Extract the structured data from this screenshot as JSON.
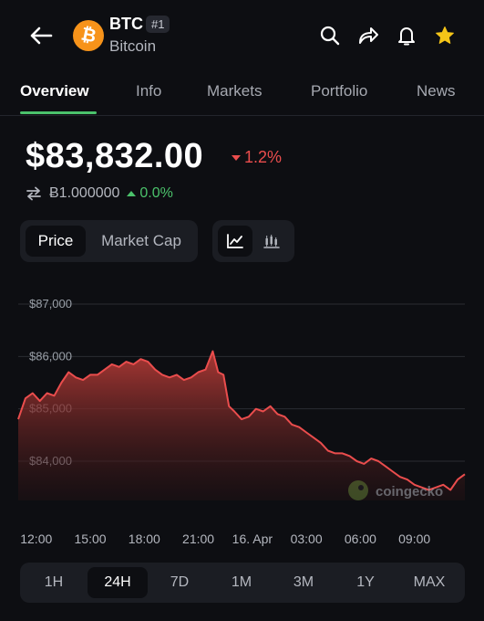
{
  "header": {
    "symbol": "BTC",
    "rank": "#1",
    "name": "Bitcoin",
    "logo_glyph": "₿",
    "icons": [
      "back-arrow-icon",
      "search-icon",
      "share-icon",
      "bell-icon",
      "star-icon"
    ],
    "star_color": "#f5c518"
  },
  "tabs": [
    {
      "label": "Overview",
      "active": true
    },
    {
      "label": "Info"
    },
    {
      "label": "Markets"
    },
    {
      "label": "Portfolio"
    },
    {
      "label": "News"
    }
  ],
  "price": {
    "value": "$83,832.00",
    "change": "1.2%",
    "change_color": "#ea4d4d",
    "btc_value": "Ƀ1.000000",
    "btc_change": "0.0%",
    "btc_change_color": "#4bc26b"
  },
  "chart_toggle": {
    "options": [
      "Price",
      "Market Cap"
    ],
    "selected": "Price",
    "view_icons": [
      "line-chart-icon",
      "candlestick-chart-icon"
    ],
    "selected_view": "line-chart-icon"
  },
  "watermark": "coingecko",
  "chart_data": {
    "type": "area",
    "xlabel": "",
    "ylabel": "",
    "y_ticks": [
      "$87,000",
      "$86,000",
      "$85,000",
      "$84,000"
    ],
    "y_tick_values": [
      87000,
      86000,
      85000,
      84000
    ],
    "ylim": [
      83000,
      87300
    ],
    "x_ticks": [
      "12:00",
      "15:00",
      "18:00",
      "21:00",
      "16. Apr",
      "03:00",
      "06:00",
      "09:00"
    ],
    "x_tick_hours": [
      12,
      15,
      18,
      21,
      24,
      27,
      30,
      33
    ],
    "xlim": [
      11,
      35.8
    ],
    "line_color": "#ea4d4d",
    "grid": true,
    "x": [
      11.0,
      11.4,
      11.8,
      12.2,
      12.6,
      13.0,
      13.4,
      13.8,
      14.2,
      14.6,
      15.0,
      15.4,
      15.8,
      16.2,
      16.6,
      17.0,
      17.4,
      17.8,
      18.2,
      18.6,
      19.0,
      19.4,
      19.8,
      20.2,
      20.6,
      21.0,
      21.4,
      21.8,
      22.1,
      22.4,
      22.7,
      23.0,
      23.4,
      23.8,
      24.2,
      24.6,
      25.0,
      25.4,
      25.8,
      26.2,
      26.6,
      27.0,
      27.4,
      27.8,
      28.2,
      28.6,
      29.0,
      29.4,
      29.8,
      30.2,
      30.6,
      31.0,
      31.4,
      31.8,
      32.2,
      32.6,
      33.0,
      33.4,
      33.8,
      34.2,
      34.6,
      35.0,
      35.4,
      35.8
    ],
    "values": [
      84800,
      85200,
      85300,
      85150,
      85300,
      85250,
      85500,
      85700,
      85600,
      85550,
      85650,
      85650,
      85750,
      85850,
      85800,
      85900,
      85850,
      85950,
      85900,
      85750,
      85650,
      85600,
      85650,
      85550,
      85600,
      85700,
      85750,
      86100,
      85700,
      85650,
      85050,
      84950,
      84800,
      84850,
      85000,
      84950,
      85050,
      84900,
      84850,
      84700,
      84650,
      84550,
      84450,
      84350,
      84200,
      84150,
      84150,
      84100,
      84000,
      83950,
      84050,
      84000,
      83900,
      83800,
      83700,
      83650,
      83550,
      83500,
      83450,
      83500,
      83550,
      83450,
      83650,
      83750
    ]
  },
  "time_ranges": {
    "options": [
      "1H",
      "24H",
      "7D",
      "1M",
      "3M",
      "1Y",
      "MAX"
    ],
    "selected": "24H"
  }
}
